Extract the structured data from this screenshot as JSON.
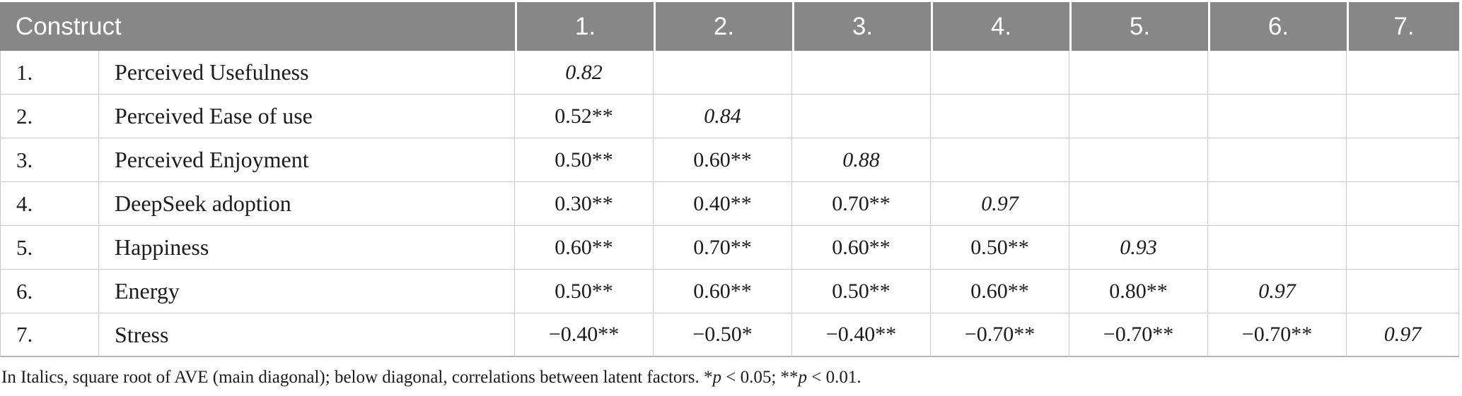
{
  "colors": {
    "header_bg": "#878787",
    "header_text": "#ffffff",
    "border_color": "#c8c8c8",
    "bottom_border": "#b5b5b5",
    "text_color": "#1c1c1c"
  },
  "table": {
    "header": {
      "construct_label": "Construct",
      "columns": [
        "1.",
        "2.",
        "3.",
        "4.",
        "5.",
        "6.",
        "7."
      ]
    },
    "rows": [
      {
        "num": "1.",
        "name": "Perceived Usefulness",
        "values": [
          "0.82",
          "",
          "",
          "",
          "",
          "",
          ""
        ]
      },
      {
        "num": "2.",
        "name": "Perceived Ease of use",
        "values": [
          "0.52**",
          "0.84",
          "",
          "",
          "",
          "",
          ""
        ]
      },
      {
        "num": "3.",
        "name": "Perceived Enjoyment",
        "values": [
          "0.50**",
          "0.60**",
          "0.88",
          "",
          "",
          "",
          ""
        ]
      },
      {
        "num": "4.",
        "name": "DeepSeek adoption",
        "values": [
          "0.30**",
          "0.40**",
          "0.70**",
          "0.97",
          "",
          "",
          ""
        ]
      },
      {
        "num": "5.",
        "name": "Happiness",
        "values": [
          "0.60**",
          "0.70**",
          "0.60**",
          "0.50**",
          "0.93",
          "",
          ""
        ]
      },
      {
        "num": "6.",
        "name": "Energy",
        "values": [
          "0.50**",
          "0.60**",
          "0.50**",
          "0.60**",
          "0.80**",
          "0.97",
          ""
        ]
      },
      {
        "num": "7.",
        "name": "Stress",
        "values": [
          "−0.40**",
          "−0.50*",
          "−0.40**",
          "−0.70**",
          "−0.70**",
          "−0.70**",
          "0.97"
        ]
      }
    ]
  },
  "footnote": {
    "part1": "In Italics, square root of AVE (main diagonal); below diagonal, correlations between latent factors. *",
    "italic_p1": "p",
    "part2": " < 0.05; **",
    "italic_p2": "p",
    "part3": " < 0.01."
  }
}
